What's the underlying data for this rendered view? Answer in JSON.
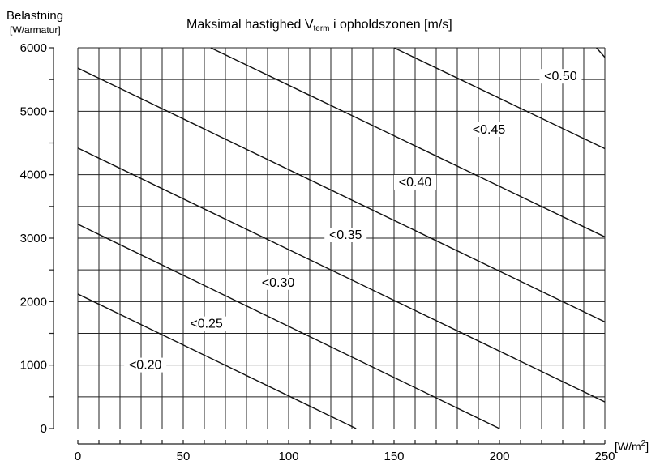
{
  "chart_data": {
    "type": "line",
    "title": {
      "prefix": "Maksimal hastighed V",
      "subscript": "term",
      "suffix": " i opholdszonen [m/s]"
    },
    "ylabel": {
      "line1": "Belastning",
      "line2": "[W/armatur]"
    },
    "xlabel": {
      "prefix": "[W/m",
      "sup": "2",
      "suffix": "]"
    },
    "xlim": [
      0,
      250
    ],
    "ylim": [
      0,
      6000
    ],
    "x_ticks": [
      0,
      50,
      100,
      150,
      200,
      250
    ],
    "x_tick_labels": [
      "0",
      "50",
      "100",
      "150",
      "200",
      "250"
    ],
    "y_ticks": [
      0,
      1000,
      2000,
      3000,
      4000,
      5000,
      6000
    ],
    "y_tick_labels": [
      "0",
      "1000",
      "2000",
      "3000",
      "4000",
      "5000",
      "6000"
    ],
    "grid": {
      "x_step": 10,
      "y_step": 500,
      "on": true
    },
    "series": [
      {
        "name": "<0.20",
        "x": [
          0,
          132
        ],
        "y": [
          2120,
          0
        ],
        "label_at": [
          32,
          950
        ]
      },
      {
        "name": "<0.25",
        "x": [
          0,
          200
        ],
        "y": [
          3220,
          0
        ],
        "label_at": [
          61,
          1600
        ]
      },
      {
        "name": "<0.30",
        "x": [
          0,
          250
        ],
        "y": [
          4420,
          420
        ],
        "label_at": [
          95,
          2250
        ]
      },
      {
        "name": "<0.35",
        "x": [
          0,
          250
        ],
        "y": [
          5680,
          1680
        ],
        "label_at": [
          127,
          3000
        ]
      },
      {
        "name": "<0.40",
        "x": [
          63,
          250
        ],
        "y": [
          6000,
          3020
        ],
        "label_at": [
          160,
          3830
        ]
      },
      {
        "name": "<0.45",
        "x": [
          150,
          250
        ],
        "y": [
          6000,
          4410
        ],
        "label_at": [
          195,
          4660
        ]
      },
      {
        "name": "<0.50",
        "x": [
          246,
          250
        ],
        "y": [
          6000,
          5850
        ],
        "label_at": [
          229,
          5500
        ]
      }
    ]
  }
}
